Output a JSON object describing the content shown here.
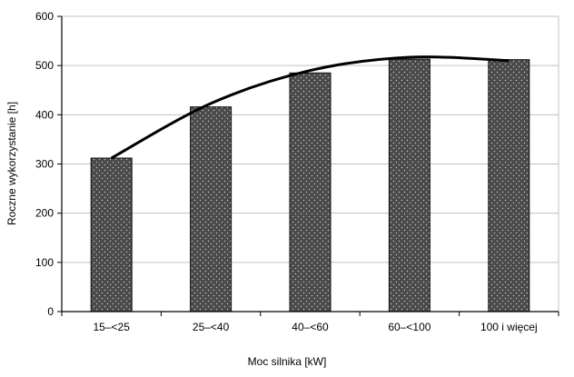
{
  "chart_data": {
    "type": "bar",
    "title": "",
    "xlabel": "Moc silnika [kW]",
    "ylabel": "Roczne wykorzystanie [h]",
    "categories": [
      "15–<25",
      "25–<40",
      "40–<60",
      "60–<100",
      "100  i więcej"
    ],
    "series": [
      {
        "values": [
          312,
          416,
          485,
          513,
          512
        ]
      }
    ],
    "trendline": {
      "type": "polynomial",
      "values": [
        312,
        423,
        490,
        517,
        510
      ]
    },
    "ylim": [
      0,
      600
    ],
    "yticks": [
      0,
      100,
      200,
      300,
      400,
      500,
      600
    ],
    "grid": true,
    "legend": "none",
    "bar_fill": "#4a4a4a",
    "bar_dot_color": "#c8c8c8",
    "trendline_color": "#000000",
    "grid_color": "#c0c0c0"
  }
}
